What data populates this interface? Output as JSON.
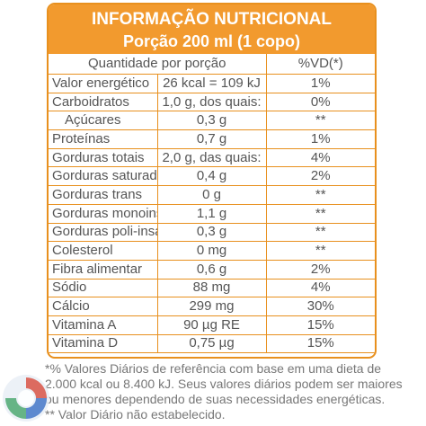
{
  "header": {
    "title": "INFORMAÇÃO NUTRICIONAL",
    "portion": "Porção 200 ml (1 copo)"
  },
  "table": {
    "col_quantity": "Quantidade por porção",
    "col_vd": "%VD(*)",
    "rows": [
      {
        "nutrient": "Valor energético",
        "amount": "26 kcal = 109 kJ",
        "vd": "1%"
      },
      {
        "nutrient": "Carboidratos",
        "amount": "1,0 g, dos quais:",
        "vd": "0%"
      },
      {
        "nutrient": "Açúcares",
        "amount": "0,3 g",
        "vd": "**"
      },
      {
        "nutrient": "Proteínas",
        "amount": "0,7 g",
        "vd": "1%"
      },
      {
        "nutrient": "Gorduras totais",
        "amount": "2,0 g, das quais:",
        "vd": "4%"
      },
      {
        "nutrient": "Gorduras saturadas",
        "amount": "0,4 g",
        "vd": "2%"
      },
      {
        "nutrient": "Gorduras trans",
        "amount": "0 g",
        "vd": "**"
      },
      {
        "nutrient": "Gorduras monoinsaturadas",
        "amount": "1,1 g",
        "vd": "**"
      },
      {
        "nutrient": "Gorduras poli-insaturadas",
        "amount": "0,3 g",
        "vd": "**"
      },
      {
        "nutrient": "Colesterol",
        "amount": "0 mg",
        "vd": "**"
      },
      {
        "nutrient": "Fibra alimentar",
        "amount": "0,6 g",
        "vd": "2%"
      },
      {
        "nutrient": "Sódio",
        "amount": "88 mg",
        "vd": "4%"
      },
      {
        "nutrient": "Cálcio",
        "amount": "299 mg",
        "vd": "30%"
      },
      {
        "nutrient": "Vitamina A",
        "amount": "90 µg RE",
        "vd": "15%"
      },
      {
        "nutrient": "Vitamina D",
        "amount": "0,75 µg",
        "vd": "15%"
      }
    ]
  },
  "footnote": {
    "line1": "*% Valores Diários de referência com base em uma dieta de",
    "line2": "2.000 kcal ou 8.400 kJ. Seus valores diários podem ser maiores",
    "line3": "ou menores dependendo de suas necessidades energéticas.",
    "line4": "** Valor Diário não estabelecido."
  },
  "colors": {
    "accent": "#f29a2e",
    "border": "#e8901e",
    "text": "#555555"
  },
  "logo": {
    "icon": "watermark-logo-icon"
  }
}
